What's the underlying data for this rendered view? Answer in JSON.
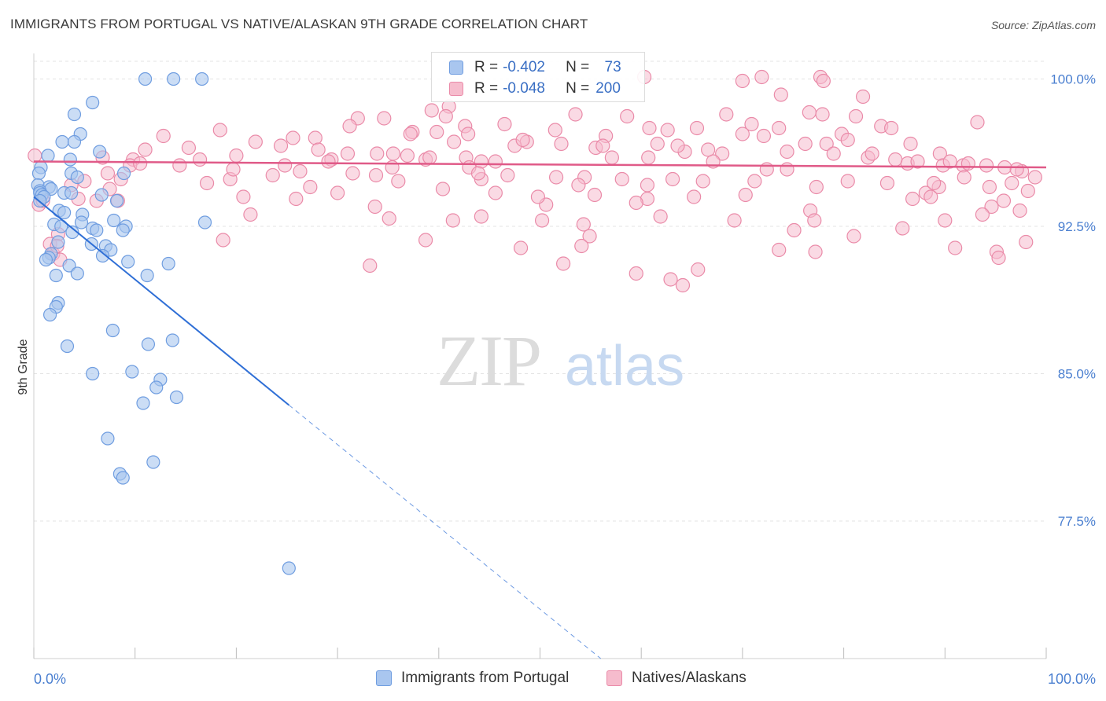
{
  "title": "IMMIGRANTS FROM PORTUGAL VS NATIVE/ALASKAN 9TH GRADE CORRELATION CHART",
  "source": "Source: ZipAtlas.com",
  "watermark": {
    "zip": "ZIP",
    "atlas": "atlas"
  },
  "colors": {
    "blue_fill": "#a9c6ef",
    "blue_stroke": "#6f9de0",
    "blue_line": "#2f6fd6",
    "pink_fill": "#f6bccd",
    "pink_stroke": "#ea8aa8",
    "pink_line": "#e05a88",
    "axis_text": "#4a7fd0",
    "grid": "#e3e3e3"
  },
  "legend": {
    "rows": [
      {
        "r_label": "R =",
        "r_value": "-0.402",
        "n_label": "N =",
        "n_value": " 73"
      },
      {
        "r_label": "R =",
        "r_value": "-0.048",
        "n_label": "N =",
        "n_value": "200"
      }
    ]
  },
  "bottom_legend": [
    "Immigrants from Portugal",
    "Natives/Alaskans"
  ],
  "chart_data": {
    "type": "scatter",
    "title": "IMMIGRANTS FROM PORTUGAL VS NATIVE/ALASKAN 9TH GRADE CORRELATION CHART",
    "xlabel": "",
    "ylabel": "9th Grade",
    "xlim": [
      0,
      100
    ],
    "ylim": [
      70.5,
      101.3
    ],
    "x_tick_labels": [
      "0.0%",
      "100.0%"
    ],
    "y_ticks": [
      100.0,
      92.5,
      85.0,
      77.5
    ],
    "y_tick_labels": [
      "100.0%",
      "92.5%",
      "85.0%",
      "77.5%"
    ],
    "grid": true,
    "legend_position": "top-center",
    "series": [
      {
        "name": "Immigrants from Portugal",
        "r": -0.402,
        "n": 73,
        "trend": {
          "x_start": 0,
          "y_start": 94.0,
          "x_solid_end": 25.2,
          "y_solid_end": 83.4,
          "x_dash_end": 56.0,
          "y_dash_end": 70.5
        },
        "points": [
          [
            11.0,
            100.0
          ],
          [
            13.8,
            100.0
          ],
          [
            16.6,
            100.0
          ],
          [
            5.8,
            98.8
          ],
          [
            4.0,
            98.2
          ],
          [
            4.6,
            97.2
          ],
          [
            2.8,
            96.8
          ],
          [
            4.0,
            96.8
          ],
          [
            6.5,
            96.3
          ],
          [
            1.4,
            96.1
          ],
          [
            3.6,
            95.9
          ],
          [
            0.7,
            95.5
          ],
          [
            0.5,
            95.2
          ],
          [
            3.7,
            95.2
          ],
          [
            8.9,
            95.2
          ],
          [
            4.3,
            95.0
          ],
          [
            0.4,
            94.6
          ],
          [
            1.5,
            94.5
          ],
          [
            1.7,
            94.4
          ],
          [
            0.6,
            94.3
          ],
          [
            0.6,
            94.2
          ],
          [
            3.0,
            94.2
          ],
          [
            3.7,
            94.2
          ],
          [
            0.8,
            94.1
          ],
          [
            1.0,
            94.0
          ],
          [
            6.7,
            94.1
          ],
          [
            8.2,
            93.8
          ],
          [
            0.6,
            93.8
          ],
          [
            2.5,
            93.3
          ],
          [
            3.0,
            93.2
          ],
          [
            4.8,
            93.1
          ],
          [
            7.9,
            92.8
          ],
          [
            16.9,
            92.7
          ],
          [
            2.0,
            92.6
          ],
          [
            4.7,
            92.7
          ],
          [
            2.7,
            92.5
          ],
          [
            5.8,
            92.4
          ],
          [
            9.1,
            92.5
          ],
          [
            6.2,
            92.3
          ],
          [
            8.8,
            92.3
          ],
          [
            3.8,
            92.2
          ],
          [
            2.4,
            91.7
          ],
          [
            5.7,
            91.6
          ],
          [
            7.1,
            91.5
          ],
          [
            7.6,
            91.3
          ],
          [
            1.7,
            91.1
          ],
          [
            6.8,
            91.0
          ],
          [
            1.5,
            90.9
          ],
          [
            1.2,
            90.8
          ],
          [
            9.3,
            90.7
          ],
          [
            13.3,
            90.6
          ],
          [
            3.5,
            90.5
          ],
          [
            4.3,
            90.1
          ],
          [
            11.2,
            90.0
          ],
          [
            2.2,
            90.0
          ],
          [
            2.4,
            88.6
          ],
          [
            2.2,
            88.4
          ],
          [
            1.6,
            88.0
          ],
          [
            7.8,
            87.2
          ],
          [
            13.7,
            86.7
          ],
          [
            11.3,
            86.5
          ],
          [
            3.3,
            86.4
          ],
          [
            9.7,
            85.1
          ],
          [
            5.8,
            85.0
          ],
          [
            12.5,
            84.7
          ],
          [
            12.1,
            84.3
          ],
          [
            14.1,
            83.8
          ],
          [
            10.8,
            83.5
          ],
          [
            7.3,
            81.7
          ],
          [
            11.8,
            80.5
          ],
          [
            8.5,
            79.9
          ],
          [
            8.8,
            79.7
          ],
          [
            25.2,
            75.1
          ]
        ]
      },
      {
        "name": "Natives/Alaskans",
        "r": -0.048,
        "n": 200,
        "trend": {
          "x_start": 0,
          "y_start": 95.8,
          "x_end": 100,
          "y_end": 95.5
        },
        "points": [
          [
            60.3,
            100.1
          ],
          [
            71.9,
            100.1
          ],
          [
            77.7,
            100.1
          ],
          [
            78.0,
            99.9
          ],
          [
            70.0,
            99.9
          ],
          [
            73.8,
            99.2
          ],
          [
            81.9,
            99.1
          ],
          [
            41.0,
            98.6
          ],
          [
            39.3,
            98.4
          ],
          [
            76.6,
            98.3
          ],
          [
            77.9,
            98.2
          ],
          [
            68.4,
            98.2
          ],
          [
            53.5,
            98.2
          ],
          [
            40.7,
            98.1
          ],
          [
            81.2,
            98.1
          ],
          [
            58.6,
            98.1
          ],
          [
            32.0,
            98.0
          ],
          [
            34.6,
            98.0
          ],
          [
            93.2,
            97.8
          ],
          [
            70.9,
            97.7
          ],
          [
            46.5,
            97.7
          ],
          [
            31.2,
            97.6
          ],
          [
            42.6,
            97.6
          ],
          [
            83.7,
            97.6
          ],
          [
            73.6,
            97.5
          ],
          [
            84.7,
            97.5
          ],
          [
            60.8,
            97.5
          ],
          [
            65.5,
            97.5
          ],
          [
            18.4,
            97.4
          ],
          [
            51.5,
            97.4
          ],
          [
            62.6,
            97.4
          ],
          [
            37.4,
            97.3
          ],
          [
            39.8,
            97.3
          ],
          [
            70.0,
            97.2
          ],
          [
            37.2,
            97.2
          ],
          [
            42.9,
            97.2
          ],
          [
            79.8,
            97.2
          ],
          [
            56.5,
            97.1
          ],
          [
            72.1,
            97.1
          ],
          [
            12.8,
            97.1
          ],
          [
            25.6,
            97.0
          ],
          [
            27.8,
            97.0
          ],
          [
            80.4,
            96.9
          ],
          [
            21.9,
            96.8
          ],
          [
            41.5,
            96.8
          ],
          [
            48.7,
            96.8
          ],
          [
            61.6,
            96.7
          ],
          [
            78.3,
            96.7
          ],
          [
            86.6,
            96.7
          ],
          [
            76.2,
            96.7
          ],
          [
            47.5,
            96.6
          ],
          [
            55.5,
            96.5
          ],
          [
            64.3,
            96.3
          ],
          [
            68.0,
            96.2
          ],
          [
            89.5,
            96.2
          ],
          [
            79.0,
            96.2
          ],
          [
            33.9,
            96.2
          ],
          [
            35.5,
            96.2
          ],
          [
            20.0,
            96.1
          ],
          [
            42.7,
            96.0
          ],
          [
            82.4,
            96.0
          ],
          [
            60.7,
            96.0
          ],
          [
            57.1,
            96.0
          ],
          [
            6.8,
            96.0
          ],
          [
            9.8,
            95.9
          ],
          [
            16.4,
            95.9
          ],
          [
            29.4,
            95.9
          ],
          [
            38.7,
            95.9
          ],
          [
            29.1,
            95.8
          ],
          [
            44.2,
            95.8
          ],
          [
            45.6,
            95.8
          ],
          [
            67.1,
            95.8
          ],
          [
            86.3,
            95.7
          ],
          [
            91.8,
            95.6
          ],
          [
            89.8,
            95.6
          ],
          [
            9.5,
            95.6
          ],
          [
            24.8,
            95.6
          ],
          [
            35.4,
            95.5
          ],
          [
            43.0,
            95.5
          ],
          [
            72.4,
            95.4
          ],
          [
            74.4,
            95.4
          ],
          [
            97.6,
            95.3
          ],
          [
            7.3,
            95.2
          ],
          [
            23.6,
            95.1
          ],
          [
            33.8,
            95.1
          ],
          [
            54.4,
            95.0
          ],
          [
            91.9,
            95.0
          ],
          [
            98.9,
            95.0
          ],
          [
            8.6,
            94.9
          ],
          [
            19.4,
            94.9
          ],
          [
            44.2,
            94.9
          ],
          [
            63.1,
            94.9
          ],
          [
            36.0,
            94.8
          ],
          [
            80.4,
            94.8
          ],
          [
            96.6,
            94.7
          ],
          [
            17.1,
            94.7
          ],
          [
            3.7,
            94.6
          ],
          [
            53.8,
            94.6
          ],
          [
            60.6,
            94.6
          ],
          [
            27.3,
            94.5
          ],
          [
            77.3,
            94.5
          ],
          [
            89.4,
            94.5
          ],
          [
            94.4,
            94.5
          ],
          [
            40.4,
            94.4
          ],
          [
            98.2,
            94.3
          ],
          [
            88.1,
            94.2
          ],
          [
            30.0,
            94.2
          ],
          [
            45.6,
            94.2
          ],
          [
            70.3,
            94.1
          ],
          [
            88.6,
            94.0
          ],
          [
            60.6,
            93.9
          ],
          [
            4.4,
            93.9
          ],
          [
            6.2,
            93.8
          ],
          [
            8.3,
            93.8
          ],
          [
            59.5,
            93.7
          ],
          [
            50.6,
            93.6
          ],
          [
            33.7,
            93.5
          ],
          [
            94.6,
            93.5
          ],
          [
            97.4,
            93.3
          ],
          [
            76.7,
            93.3
          ],
          [
            21.4,
            93.1
          ],
          [
            93.7,
            93.1
          ],
          [
            61.9,
            93.0
          ],
          [
            44.2,
            93.0
          ],
          [
            35.1,
            92.9
          ],
          [
            50.2,
            92.8
          ],
          [
            41.4,
            92.8
          ],
          [
            69.2,
            92.8
          ],
          [
            77.1,
            92.8
          ],
          [
            90.0,
            92.8
          ],
          [
            54.3,
            92.6
          ],
          [
            85.8,
            92.4
          ],
          [
            75.1,
            92.3
          ],
          [
            54.9,
            92.0
          ],
          [
            81.0,
            92.0
          ],
          [
            2.4,
            92.1
          ],
          [
            18.7,
            91.8
          ],
          [
            38.7,
            91.8
          ],
          [
            98.0,
            91.7
          ],
          [
            54.1,
            91.5
          ],
          [
            48.1,
            91.4
          ],
          [
            91.0,
            91.4
          ],
          [
            73.6,
            91.3
          ],
          [
            77.2,
            91.2
          ],
          [
            95.1,
            91.2
          ],
          [
            95.3,
            90.9
          ],
          [
            52.3,
            90.6
          ],
          [
            33.2,
            90.5
          ],
          [
            65.6,
            90.3
          ],
          [
            59.5,
            90.1
          ],
          [
            62.9,
            89.8
          ],
          [
            64.1,
            89.5
          ],
          [
            0.1,
            96.1
          ],
          [
            1.6,
            91.6
          ],
          [
            1.9,
            91.1
          ],
          [
            0.5,
            93.6
          ],
          [
            0.9,
            93.8
          ],
          [
            2.3,
            91.5
          ],
          [
            2.6,
            90.8
          ],
          [
            7.5,
            94.4
          ],
          [
            5.0,
            94.8
          ],
          [
            11.0,
            96.4
          ],
          [
            15.3,
            96.5
          ],
          [
            24.4,
            96.6
          ],
          [
            28.1,
            96.4
          ],
          [
            31.0,
            96.2
          ],
          [
            36.9,
            96.1
          ],
          [
            39.1,
            96.0
          ],
          [
            48.3,
            96.9
          ],
          [
            52.1,
            96.7
          ],
          [
            56.2,
            96.6
          ],
          [
            63.6,
            96.6
          ],
          [
            66.6,
            96.4
          ],
          [
            74.4,
            96.3
          ],
          [
            82.8,
            96.2
          ],
          [
            85.1,
            95.9
          ],
          [
            87.3,
            95.8
          ],
          [
            90.5,
            95.8
          ],
          [
            92.3,
            95.7
          ],
          [
            94.1,
            95.6
          ],
          [
            95.9,
            95.5
          ],
          [
            97.1,
            95.4
          ],
          [
            10.5,
            95.7
          ],
          [
            14.4,
            95.6
          ],
          [
            19.7,
            95.4
          ],
          [
            26.3,
            95.3
          ],
          [
            31.5,
            95.2
          ],
          [
            43.9,
            95.2
          ],
          [
            46.8,
            95.1
          ],
          [
            51.6,
            95.0
          ],
          [
            58.1,
            94.9
          ],
          [
            66.1,
            94.8
          ],
          [
            71.2,
            94.8
          ],
          [
            84.3,
            94.7
          ],
          [
            88.9,
            94.7
          ],
          [
            20.7,
            94.0
          ],
          [
            25.9,
            93.9
          ],
          [
            49.8,
            94.0
          ],
          [
            55.4,
            94.1
          ],
          [
            65.2,
            94.0
          ],
          [
            86.8,
            93.9
          ],
          [
            95.8,
            93.8
          ]
        ]
      }
    ]
  }
}
